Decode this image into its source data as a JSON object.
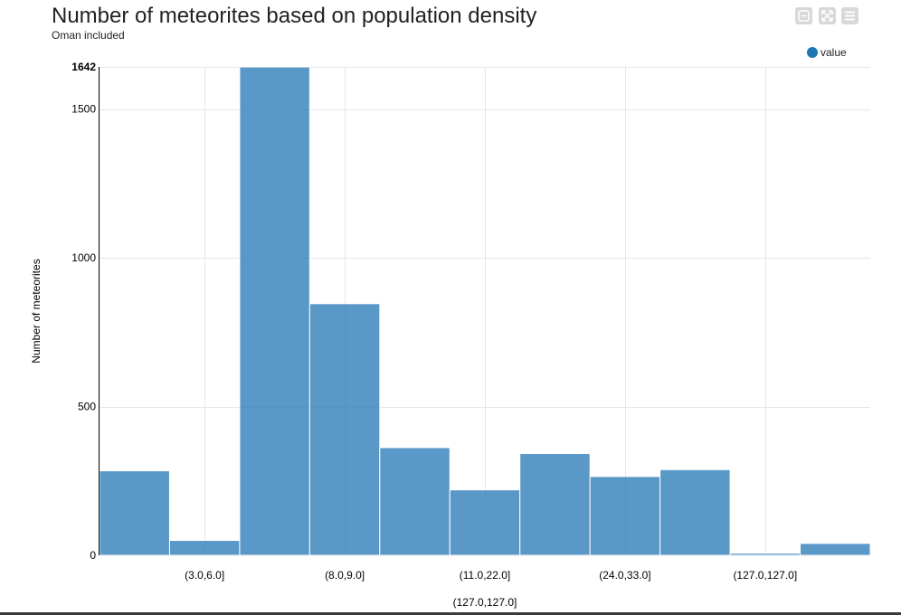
{
  "header": {
    "title": "Number of meteorites based on population density",
    "subtitle": "Oman included"
  },
  "controls": {
    "minimize_icon": "minimize-icon",
    "expand_icon": "expand-icon",
    "menu_icon": "hamburger-menu-icon"
  },
  "legend": {
    "label": "value",
    "color": "#1f77b4",
    "placement": "top-right"
  },
  "colors": {
    "bar_fill": "#2b7bb9",
    "bar_stroke": "#ffffff",
    "grid": "#e6e6e6"
  },
  "chart_data": {
    "type": "bar",
    "title": "Number of meteorites based on population density",
    "subtitle": "Oman included",
    "xlabel": "",
    "ylabel": "Number of meteorites",
    "ylim": [
      0,
      1642
    ],
    "yticks": [
      0,
      500,
      1000,
      1500,
      1642
    ],
    "grid": true,
    "bar_count": 11,
    "values": [
      284,
      50,
      1642,
      846,
      362,
      220,
      342,
      265,
      288,
      7,
      40
    ],
    "xtick_labels": [
      {
        "after_bar": 1,
        "label": "(3.0,6.0]"
      },
      {
        "after_bar": 3,
        "label": "(8.0,9.0]"
      },
      {
        "after_bar": 5,
        "label": "(11.0,22.0]"
      },
      {
        "after_bar": 7,
        "label": "(24.0,33.0]"
      },
      {
        "after_bar": 9,
        "label": "(127.0,127.0]"
      }
    ],
    "tooltip_label": "(127.0,127.0]",
    "series": [
      {
        "name": "value",
        "values": [
          284,
          50,
          1642,
          846,
          362,
          220,
          342,
          265,
          288,
          7,
          40
        ]
      }
    ]
  }
}
